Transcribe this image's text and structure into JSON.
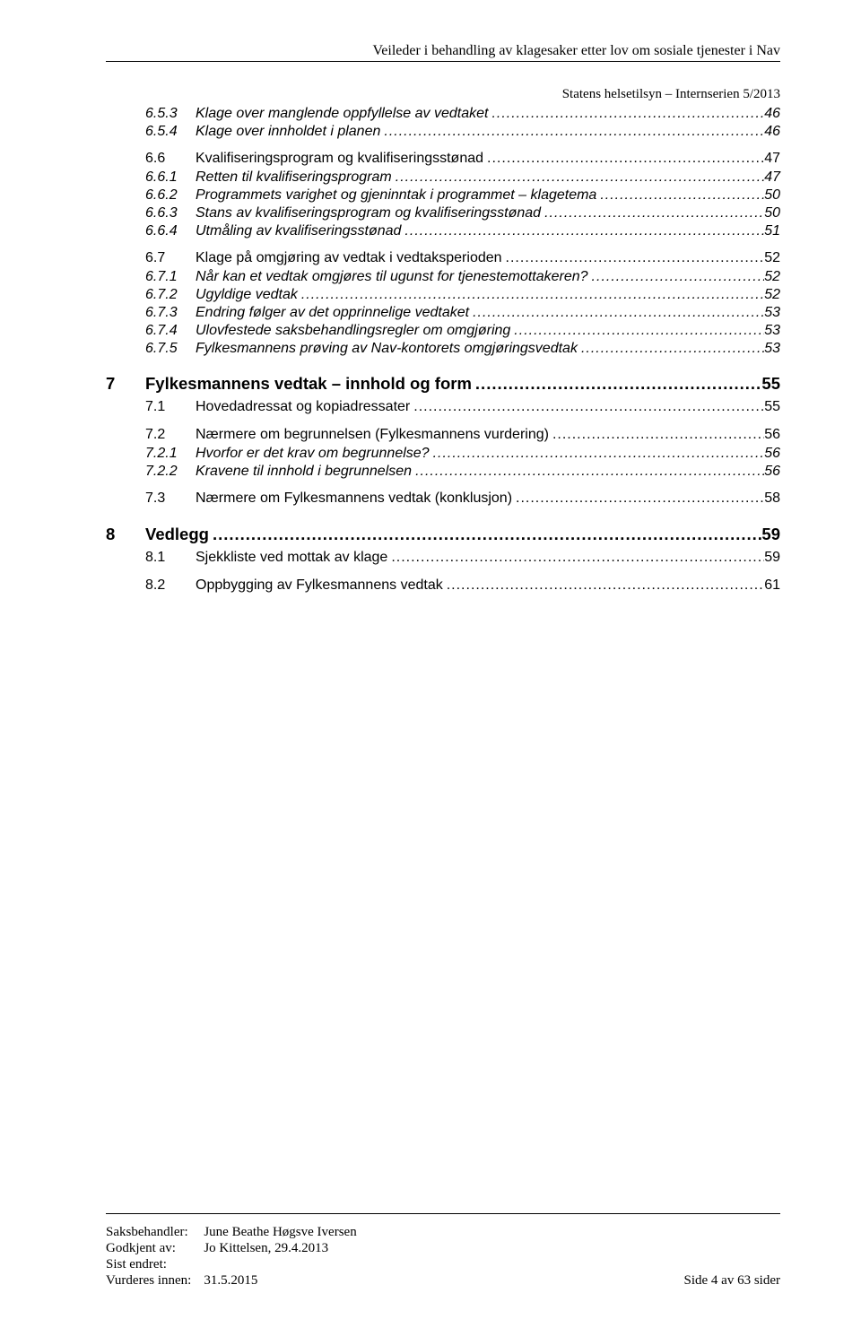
{
  "header": {
    "title_right": "Veileder i behandling av klagesaker etter lov om sosiale tjenester i Nav",
    "sub_right": "Statens helsetilsyn – Internserien 5/2013"
  },
  "toc": [
    {
      "level": 3,
      "num": "6.5.3",
      "label": "Klage over manglende oppfyllelse av vedtaket",
      "page": "46"
    },
    {
      "level": 3,
      "num": "6.5.4",
      "label": "Klage over innholdet i planen",
      "page": "46"
    },
    {
      "level": 2,
      "num": "6.6",
      "label": "Kvalifiseringsprogram og kvalifiseringsstønad",
      "page": "47",
      "gapBefore": true
    },
    {
      "level": 3,
      "num": "6.6.1",
      "label": "Retten til kvalifiseringsprogram",
      "page": "47"
    },
    {
      "level": 3,
      "num": "6.6.2",
      "label": "Programmets varighet og gjeninntak i programmet – klagetema",
      "page": "50"
    },
    {
      "level": 3,
      "num": "6.6.3",
      "label": "Stans av kvalifiseringsprogram og kvalifiseringsstønad",
      "page": "50"
    },
    {
      "level": 3,
      "num": "6.6.4",
      "label": "Utmåling av kvalifiseringsstønad",
      "page": "51"
    },
    {
      "level": 2,
      "num": "6.7",
      "label": "Klage på omgjøring av vedtak i vedtaksperioden",
      "page": "52",
      "gapBefore": true
    },
    {
      "level": 3,
      "num": "6.7.1",
      "label": "Når kan et vedtak omgjøres til ugunst for tjenestemottakeren?",
      "page": "52"
    },
    {
      "level": 3,
      "num": "6.7.2",
      "label": "Ugyldige vedtak",
      "page": "52"
    },
    {
      "level": 3,
      "num": "6.7.3",
      "label": "Endring følger av det opprinnelige vedtaket",
      "page": "53"
    },
    {
      "level": 3,
      "num": "6.7.4",
      "label": "Ulovfestede saksbehandlingsregler om omgjøring",
      "page": "53"
    },
    {
      "level": 3,
      "num": "6.7.5",
      "label": "Fylkesmannens prøving av Nav-kontorets omgjøringsvedtak",
      "page": "53"
    },
    {
      "level": 1,
      "num": "7",
      "label": "Fylkesmannens vedtak – innhold og form",
      "page": "55",
      "gapBefore": true
    },
    {
      "level": 2,
      "num": "7.1",
      "label": "Hovedadressat og kopiadressater",
      "page": "55"
    },
    {
      "level": 2,
      "num": "7.2",
      "label": "Nærmere om begrunnelsen (Fylkesmannens vurdering)",
      "page": "56",
      "gapBefore": true
    },
    {
      "level": 3,
      "num": "7.2.1",
      "label": "Hvorfor er det krav om begrunnelse?",
      "page": "56"
    },
    {
      "level": 3,
      "num": "7.2.2",
      "label": "Kravene til innhold i begrunnelsen",
      "page": "56"
    },
    {
      "level": 2,
      "num": "7.3",
      "label": "Nærmere om Fylkesmannens vedtak (konklusjon)",
      "page": "58",
      "gapBefore": true
    },
    {
      "level": 1,
      "num": "8",
      "label": "Vedlegg",
      "page": "59",
      "gapBefore": true
    },
    {
      "level": 2,
      "num": "8.1",
      "label": "Sjekkliste ved mottak av klage",
      "page": "59"
    },
    {
      "level": 2,
      "num": "8.2",
      "label": "Oppbygging av Fylkesmannens vedtak",
      "page": "61",
      "gapBefore": true
    }
  ],
  "footer": {
    "rows": [
      {
        "label": "Saksbehandler:",
        "value": "June Beathe Høgsve Iversen"
      },
      {
        "label": "Godkjent av:",
        "value": "Jo Kittelsen, 29.4.2013"
      },
      {
        "label": "Sist endret:",
        "value": ""
      },
      {
        "label": "Vurderes innen:",
        "value": "31.5.2015"
      }
    ],
    "page_info": "Side 4 av 63 sider"
  }
}
